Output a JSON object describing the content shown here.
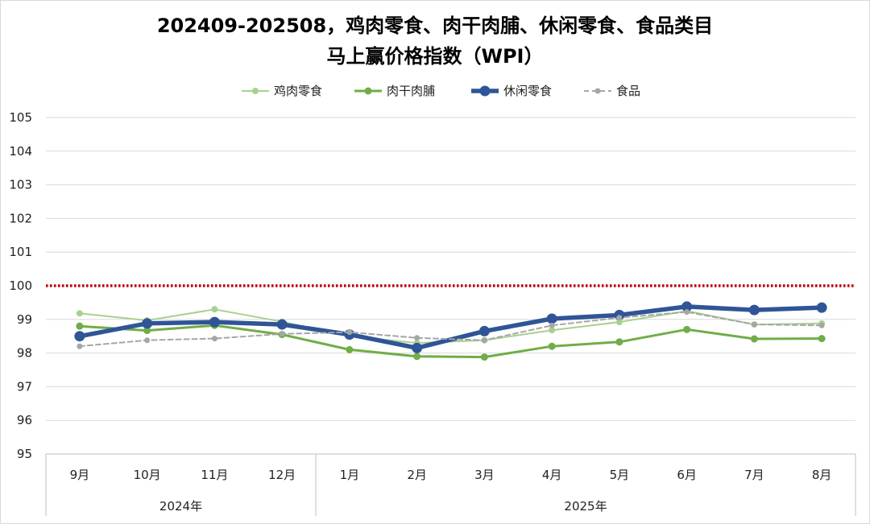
{
  "chart_data": {
    "type": "line",
    "title_line1": "202409-202508，鸡肉零食、肉干肉脯、休闲零食、食品类目",
    "title_line2": "马上赢价格指数（WPI）",
    "categories": [
      "9月",
      "10月",
      "11月",
      "12月",
      "1月",
      "2月",
      "3月",
      "4月",
      "5月",
      "6月",
      "7月",
      "8月"
    ],
    "year_groups": [
      {
        "label": "2024年",
        "count": 4
      },
      {
        "label": "2025年",
        "count": 8
      }
    ],
    "ylim": [
      95,
      105
    ],
    "yticks": [
      "95",
      "96",
      "97",
      "98",
      "99",
      "100",
      "101",
      "102",
      "103",
      "104",
      "105"
    ],
    "reference_line": {
      "value": 100,
      "color": "#c00000"
    },
    "grid": "horizontal",
    "legend_position": "top-center",
    "series": [
      {
        "name": "鸡肉零食",
        "color": "#a9d18e",
        "style": "solid-thin",
        "values": [
          99.18,
          98.97,
          99.3,
          98.93,
          98.5,
          98.3,
          98.38,
          98.68,
          98.92,
          99.25,
          98.85,
          98.88
        ]
      },
      {
        "name": "肉干肉脯",
        "color": "#70ad47",
        "style": "solid-medium",
        "values": [
          98.8,
          98.67,
          98.82,
          98.55,
          98.1,
          97.9,
          97.88,
          98.2,
          98.33,
          98.7,
          98.42,
          98.43
        ]
      },
      {
        "name": "休闲零食",
        "color": "#2f5597",
        "style": "solid-thick",
        "values": [
          98.5,
          98.88,
          98.92,
          98.85,
          98.55,
          98.15,
          98.65,
          99.02,
          99.13,
          99.38,
          99.28,
          99.35
        ]
      },
      {
        "name": "食品",
        "color": "#a6a6a6",
        "style": "dashed",
        "values": [
          98.2,
          98.38,
          98.43,
          98.57,
          98.62,
          98.45,
          98.38,
          98.82,
          99.05,
          99.22,
          98.85,
          98.82
        ]
      }
    ]
  }
}
